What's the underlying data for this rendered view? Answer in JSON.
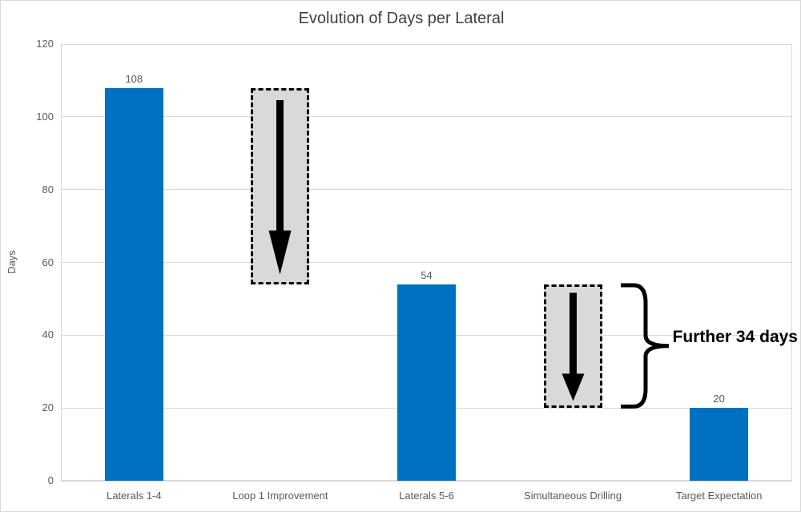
{
  "chart_data": {
    "type": "bar",
    "title": "Evolution of Days per Lateral",
    "xlabel": "",
    "ylabel": "Days",
    "ylim": [
      0,
      120
    ],
    "yticks": [
      0,
      20,
      40,
      60,
      80,
      100,
      120
    ],
    "grid": true,
    "legend": "none",
    "categories": [
      "Laterals 1-4",
      "Loop 1 Improvement",
      "Laterals 5-6",
      "Simultaneous Drilling",
      "Target Expectation"
    ],
    "values": [
      108,
      null,
      54,
      null,
      20
    ],
    "bar_value_labels": [
      "108",
      "",
      "54",
      "",
      "20"
    ],
    "annotations": {
      "drop_arrows": [
        {
          "name": "loop-1-improvement-drop",
          "index": 1,
          "from": 108,
          "to": 54
        },
        {
          "name": "simultaneous-drilling-drop",
          "index": 3,
          "from": 54,
          "to": 20
        }
      ],
      "brace_label": {
        "text": "Further 34 days",
        "from": 54,
        "to": 20,
        "after_index": 3
      }
    },
    "colors": {
      "bar": "#0070C0",
      "arrow_box_fill": "#D9D9D9",
      "arrow_box_border": "#000000",
      "arrow": "#000000",
      "grid": "#D9D9D9",
      "axis_text": "#595959",
      "title_text": "#404040",
      "annotation_text": "#000000"
    }
  }
}
